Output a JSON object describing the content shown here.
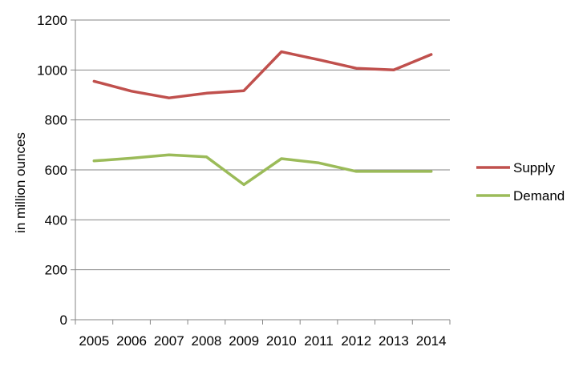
{
  "chart_data": {
    "type": "line",
    "ylabel": "in million ounces",
    "ylim": [
      0,
      1200
    ],
    "yticks": [
      0,
      200,
      400,
      600,
      800,
      1000,
      1200
    ],
    "categories": [
      "2005",
      "2006",
      "2007",
      "2008",
      "2009",
      "2010",
      "2011",
      "2012",
      "2013",
      "2014"
    ],
    "series": [
      {
        "name": "Supply",
        "color": "#c0504d",
        "values": [
          955,
          915,
          888,
          907,
          917,
          1073,
          1041,
          1007,
          1000,
          1062
        ]
      },
      {
        "name": "Demand",
        "color": "#9bbb59",
        "values": [
          636,
          647,
          660,
          652,
          541,
          645,
          628,
          594,
          594,
          594
        ]
      }
    ],
    "grid": true,
    "legend": "right"
  }
}
